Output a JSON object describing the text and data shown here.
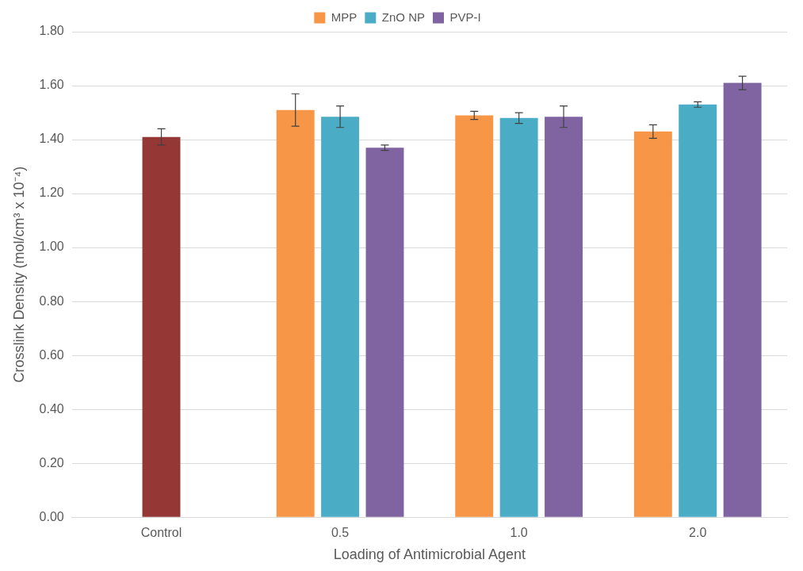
{
  "chart_data": {
    "type": "bar",
    "xlabel": "Loading of Antimicrobial Agent",
    "ylabel": "Crosslink Density (mol/cm³ x 10⁻⁴)",
    "categories": [
      "Control",
      "0.5",
      "1.0",
      "2.0"
    ],
    "series": [
      {
        "name": "MPP",
        "color": "#f79646",
        "values": [
          null,
          1.51,
          1.49,
          1.43
        ],
        "errors": [
          null,
          0.06,
          0.015,
          0.025
        ]
      },
      {
        "name": "ZnO NP",
        "color": "#4bacc6",
        "values": [
          null,
          1.485,
          1.48,
          1.53
        ],
        "errors": [
          null,
          0.04,
          0.02,
          0.01
        ]
      },
      {
        "name": "PVP-I",
        "color": "#8064a2",
        "values": [
          null,
          1.37,
          1.485,
          1.61
        ],
        "errors": [
          null,
          0.01,
          0.04,
          0.025
        ]
      },
      {
        "color": "#953735",
        "values": [
          1.41,
          null,
          null,
          null
        ],
        "errors": [
          0.03,
          null,
          null,
          null
        ]
      }
    ],
    "ylim": [
      0,
      1.8
    ],
    "yticks": [
      {
        "value": 0,
        "label": "0.00"
      },
      {
        "value": 0.2,
        "label": "0.20"
      },
      {
        "value": 0.4,
        "label": "0.40"
      },
      {
        "value": 0.6,
        "label": "0.60"
      },
      {
        "value": 0.8,
        "label": "0.80"
      },
      {
        "value": 1.0,
        "label": "1.00"
      },
      {
        "value": 1.2,
        "label": "1.20"
      },
      {
        "value": 1.4,
        "label": "1.40"
      },
      {
        "value": 1.6,
        "label": "1.60"
      },
      {
        "value": 1.8,
        "label": "1.80"
      }
    ],
    "grid": "y",
    "legend": "top"
  }
}
